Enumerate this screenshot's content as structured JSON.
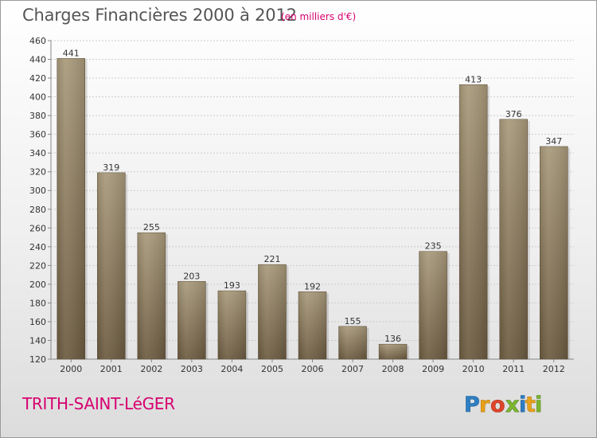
{
  "header": {
    "title": "Charges Financières 2000 à 2012",
    "subtitle": "(en milliers d'€)"
  },
  "footer": {
    "commune": "TRITH-SAINT-LéGER",
    "brand": "Proxiti"
  },
  "colors": {
    "bar_top": "#a8997a",
    "bar_bottom": "#6b5a40",
    "accent": "#d6006f",
    "grid": "#cccccc",
    "axis_text": "#333333"
  },
  "chart_data": {
    "type": "bar",
    "title": "Charges Financières 2000 à 2012",
    "subtitle": "(en milliers d'€)",
    "xlabel": "",
    "ylabel": "",
    "categories": [
      "2000",
      "2001",
      "2002",
      "2003",
      "2004",
      "2005",
      "2006",
      "2007",
      "2008",
      "2009",
      "2010",
      "2011",
      "2012"
    ],
    "values": [
      441,
      319,
      255,
      203,
      193,
      221,
      192,
      155,
      136,
      235,
      413,
      376,
      347
    ],
    "ylim": [
      120,
      460
    ],
    "yticks": [
      120,
      140,
      160,
      180,
      200,
      220,
      240,
      260,
      280,
      300,
      320,
      340,
      360,
      380,
      400,
      420,
      440,
      460
    ],
    "grid": true,
    "data_labels": true
  }
}
